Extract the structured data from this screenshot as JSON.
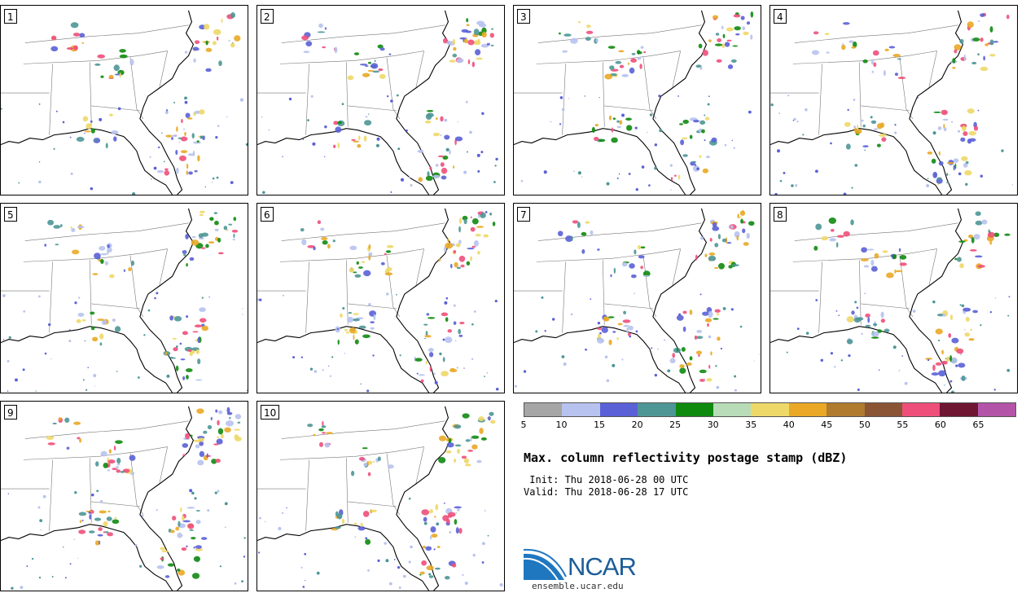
{
  "panels": [
    {
      "label": "1"
    },
    {
      "label": "2"
    },
    {
      "label": "3"
    },
    {
      "label": "4"
    },
    {
      "label": "5"
    },
    {
      "label": "6"
    },
    {
      "label": "7"
    },
    {
      "label": "8"
    },
    {
      "label": "9"
    },
    {
      "label": "10"
    }
  ],
  "colorbar": {
    "colors": [
      "#a6a6a6",
      "#b7c2ee",
      "#5a61d6",
      "#4e9696",
      "#0f8a0f",
      "#b8dcb8",
      "#eed868",
      "#e9a825",
      "#b07a2f",
      "#8a5535",
      "#ee4f7a",
      "#6e1632",
      "#b454a8"
    ],
    "ticks": [
      "5",
      "10",
      "15",
      "20",
      "25",
      "30",
      "35",
      "40",
      "45",
      "50",
      "55",
      "60",
      "65"
    ]
  },
  "title": "Max. column reflectivity postage stamp (dBZ)",
  "init": " Init: Thu 2018-06-28 00 UTC",
  "valid": "Valid: Thu 2018-06-28 17 UTC",
  "logo": {
    "text": "NCAR",
    "url": "ensemble.ucar.edu",
    "color": "#1c5d99"
  }
}
